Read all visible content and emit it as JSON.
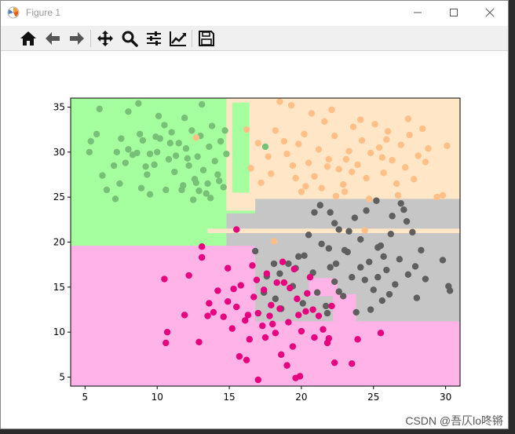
{
  "window": {
    "title": "Figure 1",
    "controls": {
      "minimize": "minimize-icon",
      "maximize": "maximize-icon",
      "close": "close-icon"
    }
  },
  "toolbar": {
    "buttons": [
      {
        "name": "home-button",
        "icon": "home-icon"
      },
      {
        "name": "back-button",
        "icon": "arrow-left-icon"
      },
      {
        "name": "forward-button",
        "icon": "arrow-right-icon"
      },
      {
        "name": "pan-button",
        "icon": "move-icon"
      },
      {
        "name": "zoom-button",
        "icon": "magnifier-icon"
      },
      {
        "name": "subplots-button",
        "icon": "sliders-icon"
      },
      {
        "name": "edit-axis-button",
        "icon": "line-chart-icon"
      },
      {
        "name": "save-button",
        "icon": "floppy-disk-icon"
      }
    ]
  },
  "watermark": "CSDN @吾仄lo咚锵",
  "colors": {
    "region_green": "#a6ff9e",
    "region_orange": "#ffe6c6",
    "region_gray": "#c6c6c6",
    "region_pink": "#ffb3e6",
    "point_green": "#77c177",
    "point_orange": "#ffbf86",
    "point_gray": "#5f5f5f",
    "point_pink": "#e6007e"
  },
  "chart_data": {
    "type": "scatter",
    "xlim": [
      4,
      31
    ],
    "ylim": [
      4,
      36
    ],
    "x_ticks": [
      5,
      10,
      15,
      20,
      25,
      30
    ],
    "y_ticks": [
      5,
      10,
      15,
      20,
      25,
      30,
      35
    ],
    "grid": false,
    "legend": "none",
    "series": [
      {
        "color": "#77c177",
        "points": [
          [
            6,
            34.8
          ],
          [
            5.4,
            31.2
          ],
          [
            5.8,
            32
          ],
          [
            5.3,
            30
          ],
          [
            6.2,
            27.4
          ],
          [
            6.5,
            25.8
          ],
          [
            7,
            28.5
          ],
          [
            7.2,
            30
          ],
          [
            7.5,
            31.5
          ],
          [
            7.4,
            26.5
          ],
          [
            7.8,
            28.8
          ],
          [
            8,
            30.3
          ],
          [
            8.3,
            29.7
          ],
          [
            8.6,
            29.9
          ],
          [
            8.7,
            35.4
          ],
          [
            8.8,
            32
          ],
          [
            8.9,
            26
          ],
          [
            9,
            31.3
          ],
          [
            9.2,
            28.4
          ],
          [
            9.5,
            29.8
          ],
          [
            9.3,
            27.5
          ],
          [
            9.8,
            28.6
          ],
          [
            10,
            30
          ],
          [
            10.2,
            31.5
          ],
          [
            10.5,
            33
          ],
          [
            10.8,
            29.2
          ],
          [
            11,
            32.2
          ],
          [
            11.2,
            27.8
          ],
          [
            11.5,
            31
          ],
          [
            11.8,
            26.3
          ],
          [
            12,
            30.4
          ],
          [
            12.2,
            28.5
          ],
          [
            12.4,
            32.4
          ],
          [
            12.6,
            27
          ],
          [
            12.8,
            29.5
          ],
          [
            13,
            31.8
          ],
          [
            13.2,
            28
          ],
          [
            13.4,
            25.4
          ],
          [
            13.6,
            30.6
          ],
          [
            13.8,
            32.9
          ],
          [
            14,
            29
          ],
          [
            14.2,
            27.5
          ],
          [
            14.4,
            31.2
          ],
          [
            14.6,
            26.1
          ],
          [
            14.8,
            29.8
          ],
          [
            9.5,
            25.3
          ],
          [
            10.6,
            25.8
          ],
          [
            11.7,
            25.8
          ],
          [
            12.5,
            24.7
          ],
          [
            13.5,
            26.5
          ],
          [
            12.9,
            25.7
          ],
          [
            13.1,
            35.3
          ],
          [
            11.9,
            33.8
          ],
          [
            14.7,
            32.4
          ],
          [
            8,
            34.5
          ],
          [
            7.1,
            24.8
          ],
          [
            10.1,
            34
          ],
          [
            9.9,
            31.7
          ],
          [
            11.3,
            29.6
          ],
          [
            12.7,
            26.6
          ],
          [
            14.3,
            26.8
          ],
          [
            13.7,
            24.9
          ],
          [
            12.1,
            29.3
          ],
          [
            10.9,
            31
          ],
          [
            17.5,
            30.6
          ]
        ]
      },
      {
        "color": "#ffbf86",
        "points": [
          [
            12.7,
            31.6
          ],
          [
            17,
            31
          ],
          [
            17.7,
            29.5
          ],
          [
            18.2,
            32.4
          ],
          [
            18.8,
            31.2
          ],
          [
            19,
            29.8
          ],
          [
            19.4,
            28.5
          ],
          [
            19.8,
            30.9
          ],
          [
            20.2,
            32
          ],
          [
            20.5,
            28.8
          ],
          [
            20.9,
            27.3
          ],
          [
            21.2,
            30.3
          ],
          [
            21.6,
            33.4
          ],
          [
            21.9,
            29.2
          ],
          [
            22.3,
            31.8
          ],
          [
            22.6,
            28.1
          ],
          [
            22.9,
            26.4
          ],
          [
            23.3,
            30.1
          ],
          [
            23.6,
            32.8
          ],
          [
            23.9,
            28.6
          ],
          [
            24.2,
            31.3
          ],
          [
            24.5,
            27.1
          ],
          [
            24.8,
            29.9
          ],
          [
            25.1,
            33.1
          ],
          [
            25.4,
            30.5
          ],
          [
            25.7,
            27.7
          ],
          [
            26,
            32.3
          ],
          [
            26.3,
            29.1
          ],
          [
            26.6,
            26.5
          ],
          [
            26.9,
            30.8
          ],
          [
            27.2,
            28.3
          ],
          [
            27.5,
            31.9
          ],
          [
            27.8,
            27
          ],
          [
            28.1,
            29.6
          ],
          [
            28.4,
            32.6
          ],
          [
            16.5,
            28.2
          ],
          [
            17.9,
            27.6
          ],
          [
            18.5,
            35.6
          ],
          [
            19.3,
            35.2
          ],
          [
            20.7,
            34.3
          ],
          [
            21.4,
            26
          ],
          [
            22.1,
            34.7
          ],
          [
            23,
            25.6
          ],
          [
            24.7,
            24.8
          ],
          [
            25.9,
            31.4
          ],
          [
            26.7,
            25.2
          ],
          [
            28.8,
            30.4
          ],
          [
            29.4,
            25
          ],
          [
            30.1,
            30.7
          ],
          [
            17.2,
            26.6
          ],
          [
            19.6,
            27.1
          ],
          [
            20.3,
            26.2
          ],
          [
            21.8,
            28.4
          ],
          [
            22.4,
            25.1
          ],
          [
            23.5,
            27.8
          ],
          [
            24.1,
            33.6
          ],
          [
            25.6,
            29.4
          ],
          [
            27.4,
            33.7
          ],
          [
            28.6,
            28.9
          ],
          [
            16.2,
            32.5
          ],
          [
            18.1,
            20.1
          ],
          [
            24.4,
            21.3
          ],
          [
            29.8,
            25.2
          ],
          [
            20,
            25.6
          ],
          [
            23.1,
            29.2
          ]
        ]
      },
      {
        "color": "#5f5f5f",
        "points": [
          [
            16.8,
            19
          ],
          [
            17.6,
            16.2
          ],
          [
            18.2,
            13.7
          ],
          [
            18.6,
            12.6
          ],
          [
            19.1,
            17.6
          ],
          [
            19.4,
            15.1
          ],
          [
            19.8,
            18.4
          ],
          [
            20.1,
            13.2
          ],
          [
            20.5,
            20.8
          ],
          [
            20.8,
            16.6
          ],
          [
            21.1,
            14.4
          ],
          [
            21.4,
            19.8
          ],
          [
            21.7,
            12.9
          ],
          [
            22,
            17.2
          ],
          [
            22.3,
            15.6
          ],
          [
            22.6,
            21.4
          ],
          [
            22.9,
            14
          ],
          [
            23.2,
            18.9
          ],
          [
            23.5,
            16.1
          ],
          [
            23.8,
            12.2
          ],
          [
            24.1,
            20.3
          ],
          [
            24.4,
            15.8
          ],
          [
            24.7,
            17.8
          ],
          [
            25,
            14.7
          ],
          [
            25.3,
            19.4
          ],
          [
            25.6,
            13.5
          ],
          [
            25.9,
            16.9
          ],
          [
            26.2,
            20.9
          ],
          [
            26.5,
            15.3
          ],
          [
            26.8,
            18.1
          ],
          [
            27.1,
            23.6
          ],
          [
            27.4,
            16.4
          ],
          [
            27.7,
            21.1
          ],
          [
            28,
            13.8
          ],
          [
            28.3,
            19.1
          ],
          [
            28.6,
            15.9
          ],
          [
            21.3,
            24.1
          ],
          [
            22,
            23.3
          ],
          [
            23.7,
            22.7
          ],
          [
            24.5,
            23.5
          ],
          [
            25.2,
            24.6
          ],
          [
            26.3,
            22.9
          ],
          [
            26.9,
            24.3
          ],
          [
            27.3,
            22.3
          ],
          [
            27.9,
            17.3
          ],
          [
            29.8,
            18
          ],
          [
            30.2,
            15.1
          ],
          [
            30.3,
            14.6
          ],
          [
            20.9,
            23.3
          ],
          [
            22.3,
            22.1
          ],
          [
            23.3,
            21.2
          ],
          [
            25.7,
            18.4
          ],
          [
            24.8,
            12.5
          ],
          [
            25.5,
            19.6
          ],
          [
            26.1,
            14.2
          ],
          [
            23,
            19.1
          ],
          [
            22.4,
            17.6
          ],
          [
            21.9,
            19.3
          ],
          [
            20.2,
            18.5
          ],
          [
            19.6,
            17.1
          ],
          [
            18.1,
            17.6
          ],
          [
            17.4,
            14.4
          ],
          [
            18.5,
            16.5
          ],
          [
            21.8,
            12.1
          ],
          [
            22.6,
            14.5
          ],
          [
            25.3,
            16.1
          ],
          [
            24.1,
            17.2
          ]
        ]
      },
      {
        "color": "#e6007e",
        "points": [
          [
            15.5,
            21.4
          ],
          [
            13.1,
            19.5
          ],
          [
            13.1,
            18.3
          ],
          [
            10.5,
            15.9
          ],
          [
            12.2,
            16.3
          ],
          [
            13.6,
            13.2
          ],
          [
            13.9,
            12.2
          ],
          [
            14.2,
            14.6
          ],
          [
            14.6,
            11.7
          ],
          [
            14.9,
            13.4
          ],
          [
            15.2,
            10.4
          ],
          [
            15.5,
            12.8
          ],
          [
            15.8,
            15.2
          ],
          [
            16.1,
            11.3
          ],
          [
            16.4,
            9.2
          ],
          [
            16.7,
            13.9
          ],
          [
            17,
            12.1
          ],
          [
            17.3,
            10.7
          ],
          [
            17.6,
            16.5
          ],
          [
            17.9,
            13
          ],
          [
            18.2,
            9.9
          ],
          [
            18.5,
            12.6
          ],
          [
            18.8,
            15.5
          ],
          [
            19.1,
            11.1
          ],
          [
            19.4,
            8.4
          ],
          [
            19.7,
            13.7
          ],
          [
            20,
            10.1
          ],
          [
            20.3,
            12.3
          ],
          [
            20.6,
            16.1
          ],
          [
            20.9,
            9.4
          ],
          [
            21.2,
            11.8
          ],
          [
            21.5,
            10.3
          ],
          [
            21.8,
            8.8
          ],
          [
            22.1,
            12.9
          ],
          [
            11.9,
            11.9
          ],
          [
            10.7,
            10
          ],
          [
            10.6,
            8.8
          ],
          [
            12.9,
            8.9
          ],
          [
            13.5,
            11.8
          ],
          [
            15.7,
            7.3
          ],
          [
            16.2,
            6.9
          ],
          [
            17,
            4.7
          ],
          [
            18.6,
            7.5
          ],
          [
            19,
            6.3
          ],
          [
            19.6,
            4.9
          ],
          [
            19.9,
            5.1
          ],
          [
            22.3,
            6.6
          ],
          [
            23.5,
            6.5
          ],
          [
            23.9,
            9.2
          ],
          [
            25.5,
            9.9
          ],
          [
            16.9,
            15.8
          ],
          [
            17.4,
            14.7
          ],
          [
            18.3,
            15.5
          ],
          [
            19.2,
            14.9
          ],
          [
            19.5,
            17
          ],
          [
            20.4,
            14.3
          ],
          [
            14.9,
            17.1
          ],
          [
            15.3,
            14.8
          ],
          [
            16.6,
            17.4
          ],
          [
            18.7,
            17.8
          ],
          [
            17.8,
            11.8
          ],
          [
            18,
            10.9
          ],
          [
            16.3,
            11.9
          ],
          [
            17.5,
            9.4
          ],
          [
            19.8,
            11.9
          ],
          [
            20.8,
            12.5
          ],
          [
            21.9,
            9.3
          ]
        ]
      }
    ]
  }
}
